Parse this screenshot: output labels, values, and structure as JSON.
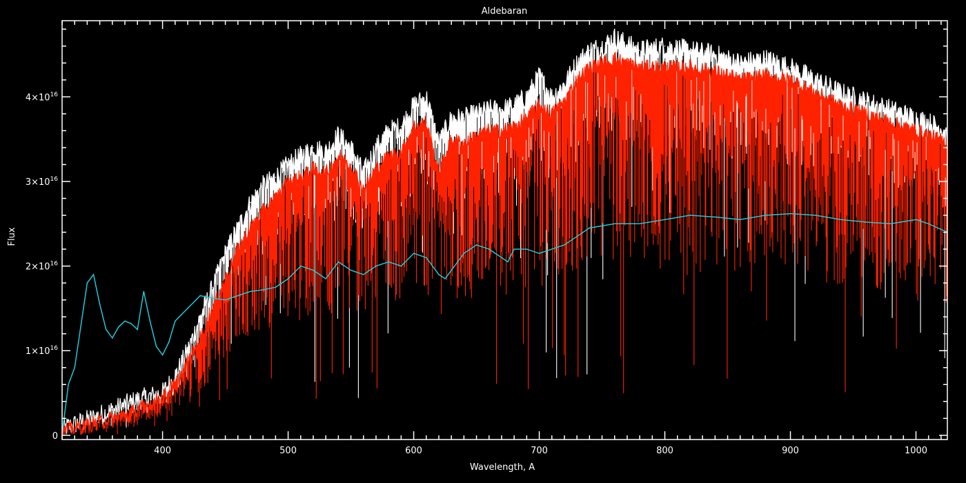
{
  "chart_data": {
    "type": "line",
    "title": "Aldebaran",
    "xlabel": "Wavelength, A",
    "ylabel": "Flux",
    "xlim": [
      320,
      1025
    ],
    "ylim": [
      -0.05,
      4.9
    ],
    "y_multiplier_label": "×10",
    "y_exponent": "16",
    "grid": false,
    "x_ticks": [
      {
        "value": 400,
        "label": "400"
      },
      {
        "value": 500,
        "label": "500"
      },
      {
        "value": 600,
        "label": "600"
      },
      {
        "value": 700,
        "label": "700"
      },
      {
        "value": 800,
        "label": "800"
      },
      {
        "value": 900,
        "label": "900"
      },
      {
        "value": 1000,
        "label": "1000"
      }
    ],
    "y_ticks": [
      {
        "value": 0,
        "label": "0",
        "mantissa": "0"
      },
      {
        "value": 1,
        "label": "1×10^16",
        "mantissa": "1"
      },
      {
        "value": 2,
        "label": "2×10^16",
        "mantissa": "2"
      },
      {
        "value": 3,
        "label": "3×10^16",
        "mantissa": "3"
      },
      {
        "value": 4,
        "label": "4×10^16",
        "mantissa": "4"
      }
    ],
    "series": [
      {
        "color": "#ffffff",
        "style": "spectrum-upper",
        "x": [
          320,
          340,
          360,
          380,
          400,
          410,
          420,
          430,
          440,
          450,
          460,
          470,
          480,
          490,
          500,
          510,
          520,
          530,
          540,
          550,
          560,
          570,
          580,
          590,
          600,
          610,
          620,
          630,
          640,
          650,
          660,
          670,
          680,
          690,
          700,
          710,
          720,
          730,
          740,
          750,
          760,
          780,
          800,
          820,
          840,
          860,
          880,
          900,
          920,
          940,
          960,
          980,
          1000,
          1010,
          1025
        ],
        "y": [
          0.08,
          0.18,
          0.3,
          0.42,
          0.5,
          0.7,
          1.0,
          1.4,
          1.75,
          2.15,
          2.45,
          2.75,
          2.95,
          3.05,
          3.2,
          3.3,
          3.4,
          3.35,
          3.55,
          3.4,
          3.1,
          3.4,
          3.6,
          3.65,
          3.9,
          4.0,
          3.45,
          3.75,
          3.75,
          3.8,
          3.85,
          3.85,
          3.9,
          4.0,
          4.25,
          4.0,
          4.15,
          4.4,
          4.55,
          4.6,
          4.7,
          4.55,
          4.6,
          4.55,
          4.5,
          4.4,
          4.45,
          4.35,
          4.2,
          4.05,
          3.95,
          3.85,
          3.75,
          3.7,
          3.6
        ]
      },
      {
        "color": "#ff2200",
        "style": "spectrum-main",
        "x": [
          320,
          340,
          360,
          380,
          400,
          410,
          420,
          430,
          440,
          450,
          460,
          470,
          480,
          490,
          500,
          510,
          520,
          530,
          540,
          550,
          560,
          570,
          580,
          590,
          600,
          610,
          620,
          630,
          640,
          650,
          660,
          670,
          680,
          690,
          700,
          710,
          720,
          730,
          740,
          750,
          760,
          780,
          800,
          820,
          840,
          860,
          880,
          900,
          920,
          940,
          960,
          980,
          1000,
          1010,
          1025
        ],
        "y": [
          0.05,
          0.12,
          0.2,
          0.3,
          0.45,
          0.6,
          0.85,
          1.15,
          1.5,
          1.85,
          2.2,
          2.45,
          2.65,
          2.8,
          3.0,
          3.05,
          3.15,
          3.1,
          3.3,
          3.2,
          2.9,
          3.15,
          3.3,
          3.35,
          3.65,
          3.7,
          3.1,
          3.5,
          3.45,
          3.55,
          3.6,
          3.6,
          3.65,
          3.75,
          3.9,
          3.8,
          3.95,
          4.2,
          4.35,
          4.4,
          4.45,
          4.35,
          4.35,
          4.35,
          4.3,
          4.2,
          4.25,
          4.2,
          4.05,
          3.9,
          3.8,
          3.7,
          3.6,
          3.55,
          3.45
        ]
      },
      {
        "color": "#22c8d8",
        "style": "continuum",
        "x": [
          320,
          325,
          330,
          335,
          340,
          345,
          350,
          355,
          360,
          365,
          370,
          375,
          380,
          385,
          390,
          395,
          400,
          405,
          410,
          420,
          430,
          440,
          450,
          460,
          470,
          480,
          490,
          500,
          510,
          520,
          530,
          540,
          550,
          560,
          570,
          580,
          590,
          600,
          610,
          620,
          625,
          630,
          640,
          650,
          660,
          670,
          675,
          680,
          690,
          700,
          720,
          740,
          760,
          780,
          800,
          820,
          840,
          860,
          880,
          900,
          920,
          940,
          960,
          980,
          1000,
          1010,
          1025
        ],
        "y": [
          0.02,
          0.6,
          0.8,
          1.3,
          1.8,
          1.9,
          1.55,
          1.25,
          1.15,
          1.28,
          1.35,
          1.32,
          1.25,
          1.7,
          1.35,
          1.05,
          0.95,
          1.1,
          1.35,
          1.5,
          1.65,
          1.62,
          1.6,
          1.65,
          1.7,
          1.72,
          1.75,
          1.85,
          2.0,
          1.95,
          1.85,
          2.05,
          1.95,
          1.9,
          2.0,
          2.05,
          2.0,
          2.15,
          2.1,
          1.9,
          1.85,
          1.95,
          2.15,
          2.25,
          2.2,
          2.1,
          2.05,
          2.2,
          2.2,
          2.15,
          2.25,
          2.45,
          2.5,
          2.5,
          2.55,
          2.6,
          2.58,
          2.55,
          2.6,
          2.62,
          2.6,
          2.55,
          2.52,
          2.5,
          2.55,
          2.5,
          2.4
        ]
      }
    ]
  }
}
